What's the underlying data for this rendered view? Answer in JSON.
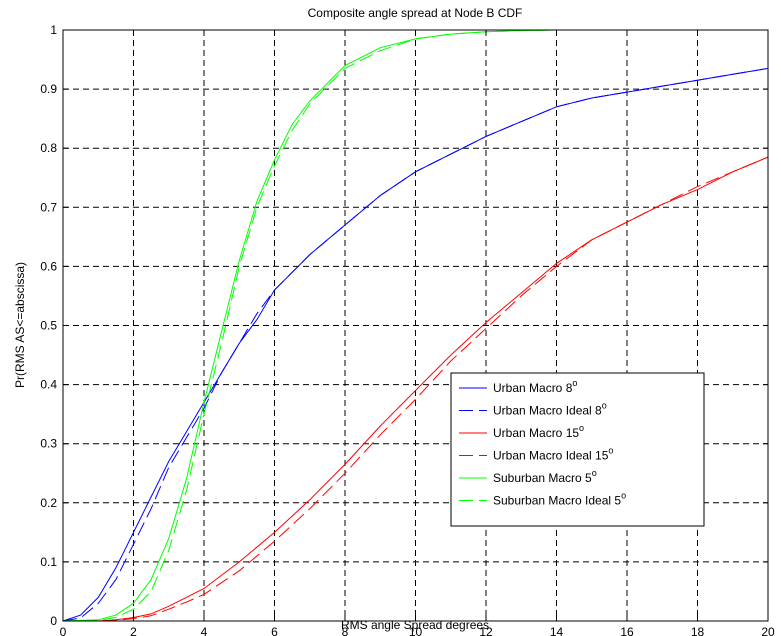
{
  "chart_data": {
    "type": "line",
    "title": "Composite angle spread at Node B CDF",
    "xlabel": "RMS angle Spread degrees",
    "ylabel": "Pr(RMS AS<=abscissa)",
    "xlim": [
      0,
      20
    ],
    "ylim": [
      0,
      1
    ],
    "xticks": [
      0,
      2,
      4,
      6,
      8,
      10,
      12,
      14,
      16,
      18,
      20
    ],
    "yticks": [
      0,
      0.1,
      0.2,
      0.3,
      0.4,
      0.5,
      0.6,
      0.7,
      0.8,
      0.9,
      1
    ],
    "xtick_labels": [
      "0",
      "2",
      "4",
      "6",
      "8",
      "10",
      "12",
      "14",
      "16",
      "18",
      "20"
    ],
    "ytick_labels": [
      "0",
      "0.1",
      "0.2",
      "0.3",
      "0.4",
      "0.5",
      "0.6",
      "0.7",
      "0.8",
      "0.9",
      "1"
    ],
    "grid": true,
    "legend_position": "lower-right",
    "series": [
      {
        "name": "Urban Macro 8",
        "superscript": "o",
        "color": "#0000ff",
        "style": "solid",
        "x": [
          0,
          0.5,
          1,
          1.5,
          2,
          2.5,
          3,
          3.5,
          4,
          4.5,
          5,
          5.5,
          6,
          7,
          8,
          9,
          10,
          11,
          12,
          13,
          14,
          15,
          16,
          17,
          18,
          19,
          20
        ],
        "y": [
          0,
          0.01,
          0.04,
          0.09,
          0.15,
          0.21,
          0.27,
          0.32,
          0.37,
          0.42,
          0.47,
          0.51,
          0.56,
          0.62,
          0.67,
          0.72,
          0.76,
          0.79,
          0.82,
          0.845,
          0.87,
          0.885,
          0.895,
          0.905,
          0.915,
          0.925,
          0.935
        ]
      },
      {
        "name": "Urban Macro Ideal 8",
        "superscript": "o",
        "color": "#0000ff",
        "style": "dashed",
        "x": [
          0,
          0.5,
          1,
          1.5,
          2,
          2.5,
          3,
          3.5,
          4,
          4.5,
          5,
          5.5,
          6,
          7,
          8,
          9,
          10,
          11,
          12,
          13,
          14,
          15,
          16,
          17,
          18,
          19,
          20
        ],
        "y": [
          0,
          0.005,
          0.03,
          0.07,
          0.13,
          0.19,
          0.26,
          0.31,
          0.36,
          0.42,
          0.47,
          0.52,
          0.56,
          0.62,
          0.67,
          0.72,
          0.76,
          0.79,
          0.82,
          0.845,
          0.87,
          0.885,
          0.895,
          0.905,
          0.915,
          0.925,
          0.935
        ]
      },
      {
        "name": "Urban Macro 15",
        "superscript": "o",
        "color": "#ff0000",
        "style": "solid",
        "x": [
          0,
          1,
          1.5,
          2,
          2.5,
          3,
          3.5,
          4,
          5,
          6,
          7,
          8,
          9,
          10,
          11,
          12,
          13,
          14,
          15,
          16,
          17,
          18,
          19,
          20
        ],
        "y": [
          0,
          0,
          0.002,
          0.006,
          0.012,
          0.025,
          0.04,
          0.055,
          0.1,
          0.15,
          0.205,
          0.265,
          0.33,
          0.39,
          0.45,
          0.505,
          0.555,
          0.605,
          0.645,
          0.675,
          0.705,
          0.73,
          0.76,
          0.785
        ]
      },
      {
        "name": "Urban Macro Ideal 15",
        "superscript": "o",
        "color": "#ff0000",
        "style": "dashed",
        "x": [
          0,
          1,
          1.5,
          2,
          2.5,
          3,
          3.5,
          4,
          5,
          6,
          7,
          8,
          9,
          10,
          11,
          12,
          13,
          14,
          15,
          16,
          17,
          18,
          19,
          20
        ],
        "y": [
          0,
          0,
          0.001,
          0.004,
          0.009,
          0.02,
          0.032,
          0.045,
          0.085,
          0.135,
          0.19,
          0.25,
          0.315,
          0.375,
          0.44,
          0.495,
          0.55,
          0.6,
          0.645,
          0.675,
          0.705,
          0.735,
          0.76,
          0.785
        ]
      },
      {
        "name": "Suburban Macro 5",
        "superscript": "o",
        "color": "#00ff00",
        "style": "solid",
        "x": [
          0,
          1,
          1.5,
          2,
          2.5,
          3,
          3.5,
          4,
          4.5,
          5,
          5.5,
          6,
          6.5,
          7,
          7.5,
          8,
          9,
          10,
          11,
          12,
          13,
          14,
          16,
          18,
          20
        ],
        "y": [
          0,
          0.002,
          0.01,
          0.03,
          0.07,
          0.14,
          0.24,
          0.37,
          0.49,
          0.61,
          0.71,
          0.78,
          0.84,
          0.88,
          0.91,
          0.94,
          0.97,
          0.985,
          0.993,
          0.997,
          0.999,
          1,
          1,
          1,
          1
        ]
      },
      {
        "name": "Suburban Macro Ideal 5",
        "superscript": "o",
        "color": "#00ff00",
        "style": "dashed",
        "x": [
          0,
          1,
          1.5,
          2,
          2.5,
          3,
          3.5,
          4,
          4.5,
          5,
          5.5,
          6,
          6.5,
          7,
          7.5,
          8,
          9,
          10,
          11,
          12,
          13,
          14,
          16,
          18,
          20
        ],
        "y": [
          0,
          0.001,
          0.006,
          0.02,
          0.05,
          0.12,
          0.22,
          0.35,
          0.47,
          0.6,
          0.7,
          0.77,
          0.83,
          0.875,
          0.905,
          0.935,
          0.965,
          0.985,
          0.993,
          0.997,
          0.999,
          1,
          1,
          1,
          1
        ]
      }
    ]
  }
}
